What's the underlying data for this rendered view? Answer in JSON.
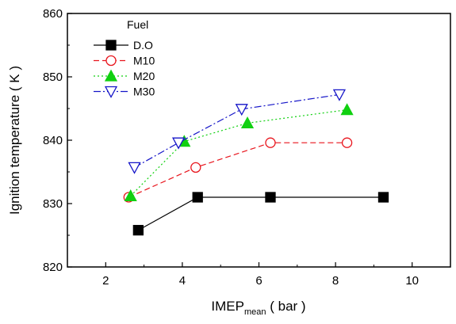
{
  "chart_data": {
    "type": "line",
    "title": "",
    "xlabel_main": "IMEP",
    "xlabel_sub": "mean",
    "xlabel_unit": " ( bar )",
    "ylabel": "Ignition temperature ( K )",
    "xlim": [
      1,
      11
    ],
    "ylim": [
      820,
      860
    ],
    "x_ticks": [
      2,
      4,
      6,
      8,
      10
    ],
    "y_ticks": [
      820,
      830,
      840,
      850,
      860
    ],
    "grid": false,
    "legend": {
      "title": "Fuel",
      "placement": "top-left"
    },
    "series": [
      {
        "name": "D.O",
        "color": "#000000",
        "marker": "square",
        "filled": true,
        "dash": "",
        "x": [
          2.85,
          4.4,
          6.3,
          9.25
        ],
        "y": [
          825.8,
          831.0,
          831.0,
          831.0
        ]
      },
      {
        "name": "M10",
        "color": "#e8141c",
        "marker": "circle",
        "filled": false,
        "dash": "7,4",
        "x": [
          2.6,
          4.35,
          6.3,
          8.3
        ],
        "y": [
          831.0,
          835.7,
          839.6,
          839.6
        ]
      },
      {
        "name": "M20",
        "color": "#10d010",
        "marker": "triangle-up",
        "filled": true,
        "dash": "2,3",
        "x": [
          2.65,
          4.05,
          5.7,
          8.3
        ],
        "y": [
          831.2,
          839.8,
          842.7,
          844.8
        ]
      },
      {
        "name": "M30",
        "color": "#1414c8",
        "marker": "triangle-down",
        "filled": false,
        "dash": "9,3,2,3",
        "x": [
          2.75,
          3.9,
          5.55,
          8.1
        ],
        "y": [
          835.7,
          839.6,
          844.9,
          847.2
        ]
      }
    ]
  }
}
